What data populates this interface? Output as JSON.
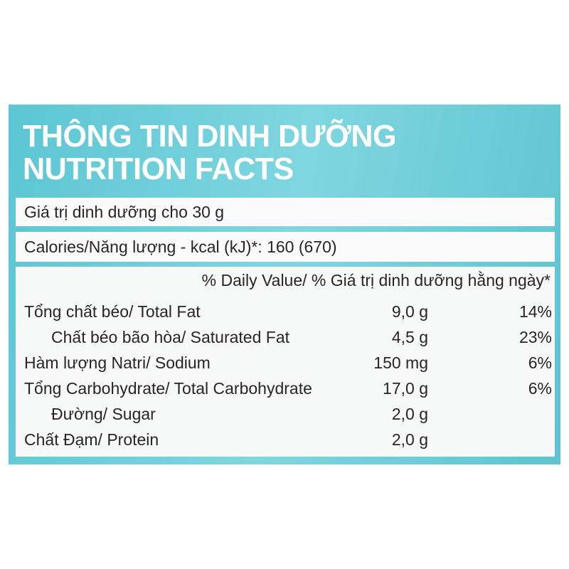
{
  "header": {
    "title_vi": "THÔNG TIN DINH DƯỠNG",
    "title_en": "NUTRITION FACTS"
  },
  "serving": "Giá trị dinh dưỡng cho 30 g",
  "calories": "Calories/Năng lượng - kcal (kJ)*: 160 (670)",
  "daily_value_header": "% Daily Value/ % Giá trị dinh dưỡng hằng ngày*",
  "nutrients": [
    {
      "label": "Tổng chất béo/ Total Fat",
      "amount": "9,0 g",
      "dv": "14%",
      "indent": false
    },
    {
      "label": "Chất béo bão hòa/ Saturated Fat",
      "amount": "4,5 g",
      "dv": "23%",
      "indent": true
    },
    {
      "label": "Hàm lượng Natri/ Sodium",
      "amount": "150 mg",
      "dv": "6%",
      "indent": false
    },
    {
      "label": "Tổng Carbohydrate/ Total Carbohydrate",
      "amount": "17,0 g",
      "dv": "6%",
      "indent": false
    },
    {
      "label": "Đường/ Sugar",
      "amount": "2,0 g",
      "dv": "",
      "indent": true
    },
    {
      "label": "Chất Đạm/ Protein",
      "amount": "2,0 g",
      "dv": "",
      "indent": false
    }
  ],
  "colors": {
    "accent": "#6fcfda",
    "text": "#2a2426"
  }
}
